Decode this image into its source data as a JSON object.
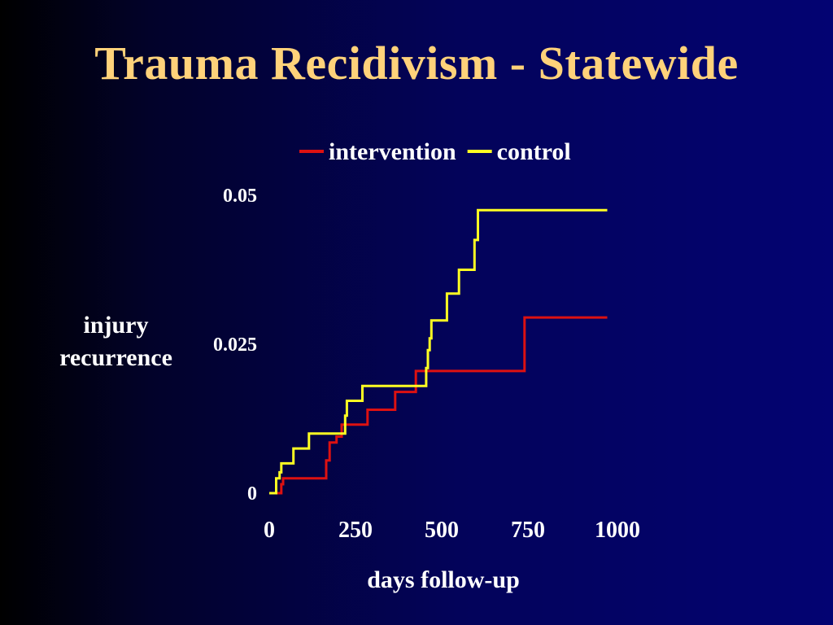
{
  "chart_data": {
    "type": "line",
    "title": "Trauma Recidivism - Statewide",
    "xlabel": "days follow-up",
    "ylabel_lines": [
      "injury",
      "recurrence"
    ],
    "xlim": [
      0,
      1000
    ],
    "ylim": [
      0,
      0.05
    ],
    "x_ticks": [
      {
        "value": 0,
        "label": "0"
      },
      {
        "value": 250,
        "label": "250"
      },
      {
        "value": 500,
        "label": "500"
      },
      {
        "value": 750,
        "label": "750"
      },
      {
        "value": 1000,
        "label": "1000"
      }
    ],
    "y_ticks": [
      {
        "value": 0,
        "label": "0"
      },
      {
        "value": 0.025,
        "label": "0.025"
      },
      {
        "value": 0.05,
        "label": "0.05"
      }
    ],
    "grid": false,
    "legend_position": "top",
    "series": [
      {
        "name": "intervention",
        "color": "#dd1111",
        "style": "step",
        "points": [
          [
            0,
            0
          ],
          [
            30,
            0
          ],
          [
            35,
            0.0015
          ],
          [
            40,
            0.0025
          ],
          [
            160,
            0.0025
          ],
          [
            165,
            0.0055
          ],
          [
            175,
            0.0085
          ],
          [
            195,
            0.0095
          ],
          [
            210,
            0.0115
          ],
          [
            280,
            0.0115
          ],
          [
            285,
            0.014
          ],
          [
            360,
            0.014
          ],
          [
            365,
            0.017
          ],
          [
            420,
            0.017
          ],
          [
            425,
            0.0205
          ],
          [
            735,
            0.0205
          ],
          [
            740,
            0.0295
          ],
          [
            980,
            0.0295
          ]
        ]
      },
      {
        "name": "control",
        "color": "#ffff22",
        "style": "step",
        "points": [
          [
            0,
            0
          ],
          [
            15,
            0
          ],
          [
            20,
            0.0025
          ],
          [
            30,
            0.0035
          ],
          [
            35,
            0.005
          ],
          [
            65,
            0.005
          ],
          [
            70,
            0.0075
          ],
          [
            110,
            0.0075
          ],
          [
            115,
            0.01
          ],
          [
            215,
            0.01
          ],
          [
            220,
            0.013
          ],
          [
            225,
            0.0155
          ],
          [
            265,
            0.0155
          ],
          [
            270,
            0.018
          ],
          [
            450,
            0.018
          ],
          [
            455,
            0.021
          ],
          [
            460,
            0.024
          ],
          [
            465,
            0.026
          ],
          [
            470,
            0.029
          ],
          [
            510,
            0.029
          ],
          [
            515,
            0.0335
          ],
          [
            545,
            0.0335
          ],
          [
            550,
            0.0375
          ],
          [
            590,
            0.0375
          ],
          [
            595,
            0.0425
          ],
          [
            605,
            0.0475
          ],
          [
            980,
            0.0475
          ]
        ]
      }
    ]
  }
}
